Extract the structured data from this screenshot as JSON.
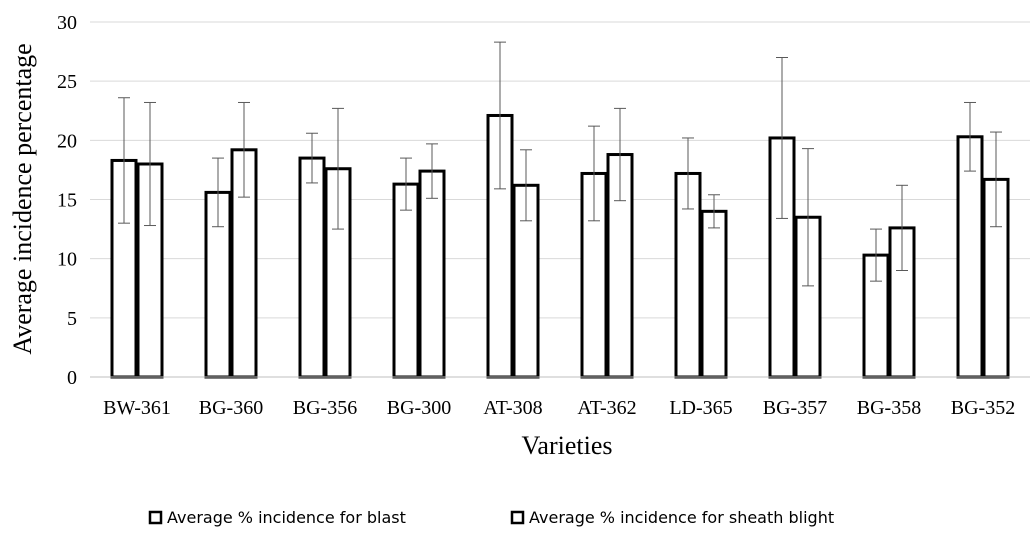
{
  "chart_data": {
    "type": "bar",
    "title": "",
    "xlabel": "Varieties",
    "ylabel": "Average incidence percentage",
    "ylim": [
      0,
      30
    ],
    "yticks": [
      0,
      5,
      10,
      15,
      20,
      25,
      30
    ],
    "grid": true,
    "legend_position": "bottom",
    "categories": [
      "BW-361",
      "BG-360",
      "BG-356",
      "BG-300",
      "AT-308",
      "AT-362",
      "LD-365",
      "BG-357",
      "BG-358",
      "BG-352"
    ],
    "series": [
      {
        "name": "Average % incidence for blast",
        "values": [
          18.3,
          15.6,
          18.5,
          16.3,
          22.1,
          17.2,
          17.2,
          20.2,
          10.3,
          20.3
        ],
        "error": [
          5.3,
          2.9,
          2.1,
          2.2,
          6.2,
          4.0,
          3.0,
          6.8,
          2.2,
          2.9
        ]
      },
      {
        "name": "Average % incidence for sheath blight",
        "values": [
          18.0,
          19.2,
          17.6,
          17.4,
          16.2,
          18.8,
          14.0,
          13.5,
          12.6,
          16.7
        ],
        "error": [
          5.2,
          4.0,
          5.1,
          2.3,
          3.0,
          3.9,
          1.4,
          5.8,
          3.6,
          4.0
        ]
      }
    ],
    "colors": {
      "bar_fill": "#ffffff",
      "bar_stroke": "#000000",
      "error_bar": "#595959",
      "grid": "#d9d9d9"
    }
  }
}
